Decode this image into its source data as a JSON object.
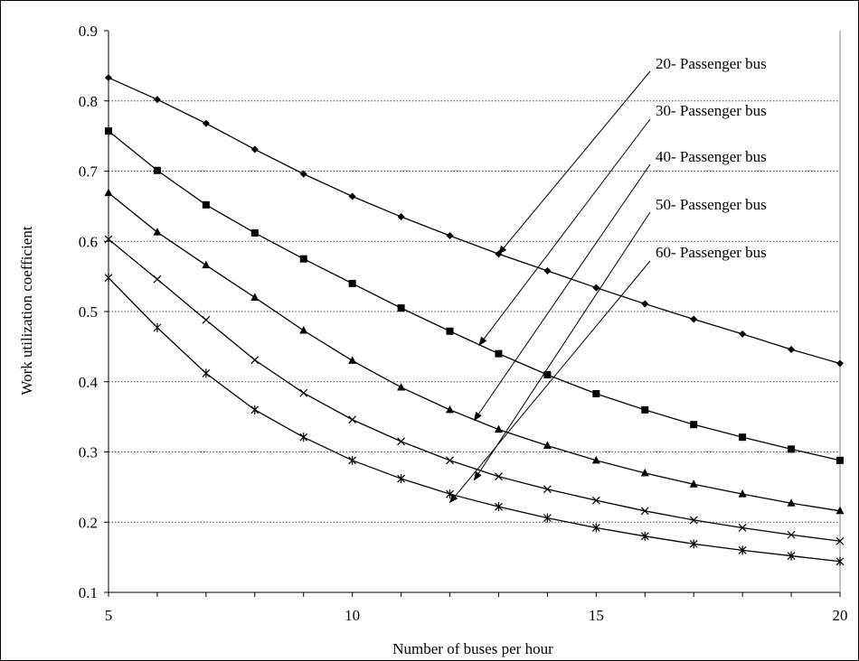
{
  "chart_data": {
    "type": "line",
    "title": "",
    "xlabel": "Number of buses per hour",
    "ylabel": "Work utilization coefficient",
    "xlim": [
      5,
      20
    ],
    "ylim": [
      0.1,
      0.9
    ],
    "x_ticks": [
      5,
      10,
      15,
      20
    ],
    "x_tick_labels": [
      "5",
      "10",
      "15",
      "20"
    ],
    "y_ticks": [
      0.1,
      0.2,
      0.3,
      0.4,
      0.5,
      0.6,
      0.7,
      0.8,
      0.9
    ],
    "y_tick_labels": [
      "0.1",
      "0.2",
      "0.3",
      "0.4",
      "0.5",
      "0.6",
      "0.7",
      "0.8",
      "0.9"
    ],
    "grid": "horizontal dotted",
    "x": [
      5,
      6,
      7,
      8,
      9,
      10,
      11,
      12,
      13,
      14,
      15,
      16,
      17,
      18,
      19,
      20
    ],
    "series": [
      {
        "marker": "diamond",
        "values": [
          0.833,
          0.802,
          0.768,
          0.731,
          0.696,
          0.664,
          0.635,
          0.608,
          0.582,
          0.558,
          0.534,
          0.511,
          0.489,
          0.468,
          0.446,
          0.426
        ]
      },
      {
        "marker": "square",
        "values": [
          0.757,
          0.701,
          0.652,
          0.612,
          0.575,
          0.54,
          0.505,
          0.472,
          0.44,
          0.41,
          0.383,
          0.36,
          0.339,
          0.321,
          0.304,
          0.288
        ]
      },
      {
        "marker": "triangle",
        "values": [
          0.669,
          0.613,
          0.566,
          0.52,
          0.473,
          0.43,
          0.392,
          0.36,
          0.332,
          0.309,
          0.288,
          0.27,
          0.254,
          0.24,
          0.227,
          0.216
        ]
      },
      {
        "marker": "x",
        "values": [
          0.603,
          0.546,
          0.488,
          0.431,
          0.384,
          0.346,
          0.315,
          0.288,
          0.265,
          0.247,
          0.231,
          0.216,
          0.203,
          0.192,
          0.182,
          0.173
        ]
      },
      {
        "marker": "star",
        "values": [
          0.548,
          0.477,
          0.412,
          0.36,
          0.321,
          0.288,
          0.262,
          0.24,
          0.222,
          0.206,
          0.192,
          0.18,
          0.169,
          0.16,
          0.152,
          0.144
        ]
      }
    ],
    "annotations": [
      {
        "text": "20- Passenger bus",
        "points_to_x": 13.0,
        "points_to_y": 0.582
      },
      {
        "text": "30- Passenger bus",
        "points_to_x": 12.6,
        "points_to_y": 0.452
      },
      {
        "text": "40- Passenger bus",
        "points_to_x": 12.5,
        "points_to_y": 0.345
      },
      {
        "text": "50- Passenger bus",
        "points_to_x": 12.5,
        "points_to_y": 0.26
      },
      {
        "text": "60- Passenger bus",
        "points_to_x": 12.0,
        "points_to_y": 0.228
      }
    ]
  }
}
